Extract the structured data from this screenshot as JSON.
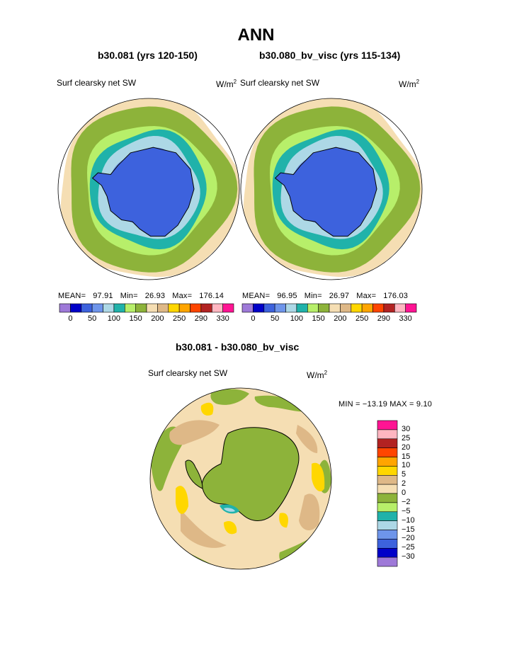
{
  "page_title": "ANN",
  "panels": [
    {
      "title": "b30.081 (yrs 120-150)",
      "variable": "Surf clearsky net SW",
      "units_base": "W/m",
      "units_exp": "2",
      "mean_label": "MEAN=",
      "mean_value": "97.91",
      "min_label": "Min=",
      "min_value": "26.93",
      "max_label": "Max=",
      "max_value": "176.14"
    },
    {
      "title": "b30.080_bv_visc (yrs 115-134)",
      "variable": "Surf clearsky net SW",
      "units_base": "W/m",
      "units_exp": "2",
      "mean_label": "MEAN=",
      "mean_value": "96.95",
      "min_label": "Min=",
      "min_value": "26.97",
      "max_label": "Max=",
      "max_value": "176.03"
    }
  ],
  "diff_panel": {
    "title": "b30.081 - b30.080_bv_visc",
    "variable": "Surf clearsky net SW",
    "units_base": "W/m",
    "units_exp": "2",
    "minmax": "MIN = −13.19  MAX =    9.10"
  },
  "chart_data": [
    {
      "type": "heatmap",
      "title": "b30.081 (yrs 120-150)",
      "projection": "south-polar stereographic",
      "field": "Surf clearsky net SW",
      "units": "W/m2",
      "mean": 97.91,
      "min": 26.93,
      "max": 176.14,
      "colorbar_orientation": "horizontal",
      "colorbar_tick_labels": [
        "0",
        "50",
        "100",
        "150",
        "200",
        "250",
        "290",
        "330"
      ],
      "colors": [
        "#9e79d8",
        "#0000c8",
        "#3d62dd",
        "#6e95ea",
        "#add8e6",
        "#20b2aa",
        "#b7ef6a",
        "#8db33a",
        "#f5deb3",
        "#deb887",
        "#ffd700",
        "#ffa500",
        "#ff4500",
        "#b22222",
        "#ffb6c1",
        "#ff1493"
      ],
      "zones": [
        {
          "from_lat": -90,
          "to_lat": -71,
          "color": "#3d62dd"
        },
        {
          "from_lat": -71,
          "to_lat": -64,
          "color": "#6e95ea"
        },
        {
          "from_lat": -64,
          "to_lat": -57,
          "color": "#add8e6"
        },
        {
          "from_lat": -57,
          "to_lat": -52,
          "color": "#20b2aa"
        },
        {
          "from_lat": -52,
          "to_lat": -48,
          "color": "#b7ef6a"
        },
        {
          "from_lat": -48,
          "to_lat": -36,
          "color": "#8db33a"
        },
        {
          "from_lat": -36,
          "to_lat": -31,
          "color": "#f5deb3"
        }
      ]
    },
    {
      "type": "heatmap",
      "title": "b30.080_bv_visc (yrs 115-134)",
      "projection": "south-polar stereographic",
      "field": "Surf clearsky net SW",
      "units": "W/m2",
      "mean": 96.95,
      "min": 26.97,
      "max": 176.03,
      "colorbar_orientation": "horizontal",
      "colorbar_tick_labels": [
        "0",
        "50",
        "100",
        "150",
        "200",
        "250",
        "290",
        "330"
      ],
      "colors": [
        "#9e79d8",
        "#0000c8",
        "#3d62dd",
        "#6e95ea",
        "#add8e6",
        "#20b2aa",
        "#b7ef6a",
        "#8db33a",
        "#f5deb3",
        "#deb887",
        "#ffd700",
        "#ffa500",
        "#ff4500",
        "#b22222",
        "#ffb6c1",
        "#ff1493"
      ],
      "zones": [
        {
          "from_lat": -90,
          "to_lat": -71,
          "color": "#3d62dd"
        },
        {
          "from_lat": -71,
          "to_lat": -64,
          "color": "#6e95ea"
        },
        {
          "from_lat": -64,
          "to_lat": -57,
          "color": "#add8e6"
        },
        {
          "from_lat": -57,
          "to_lat": -52,
          "color": "#20b2aa"
        },
        {
          "from_lat": -52,
          "to_lat": -48,
          "color": "#b7ef6a"
        },
        {
          "from_lat": -48,
          "to_lat": -36,
          "color": "#8db33a"
        },
        {
          "from_lat": -36,
          "to_lat": -31,
          "color": "#f5deb3"
        }
      ]
    },
    {
      "type": "heatmap",
      "title": "b30.081 - b30.080_bv_visc",
      "projection": "south-polar stereographic",
      "field": "Surf clearsky net SW",
      "units": "W/m2",
      "min": -13.19,
      "max": 9.1,
      "colorbar_orientation": "vertical",
      "colorbar_tick_labels": [
        "30",
        "25",
        "20",
        "15",
        "10",
        "5",
        "2",
        "0",
        "−2",
        "−5",
        "−10",
        "−15",
        "−20",
        "−25",
        "−30"
      ],
      "colors": [
        "#ff1493",
        "#ffb6c1",
        "#b22222",
        "#ff4500",
        "#ffa500",
        "#ffd700",
        "#deb887",
        "#f5deb3",
        "#8db33a",
        "#b7ef6a",
        "#20b2aa",
        "#add8e6",
        "#6e95ea",
        "#3d62dd",
        "#0000c8",
        "#9e79d8"
      ],
      "background_color": "#f5deb3",
      "continent_color": "#8db33a"
    }
  ]
}
